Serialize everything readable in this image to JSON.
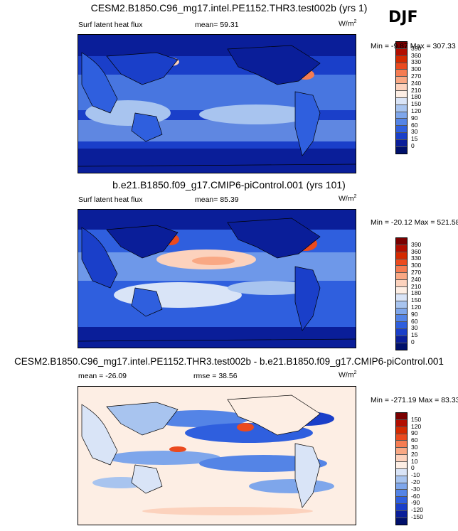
{
  "season": "DJF",
  "panels": [
    {
      "title": "CESM2.B1850.C96_mg17.intel.PE1152.THR3.test002b (yrs 1)",
      "variable": "Surf latent heat flux",
      "stat_label": "mean=",
      "stat_value": "59.31",
      "units_base": "W/m",
      "units_exp": "2",
      "range_text": "Min =  -9.87 Max = 307.33",
      "colorbar_levels": [
        "390",
        "360",
        "330",
        "300",
        "270",
        "240",
        "210",
        "180",
        "150",
        "120",
        "90",
        "60",
        "30",
        "15",
        "0"
      ]
    },
    {
      "title": "b.e21.B1850.f09_g17.CMIP6-piControl.001 (yrs 101)",
      "variable": "Surf latent heat flux",
      "stat_label": "mean=",
      "stat_value": "85.39",
      "units_base": "W/m",
      "units_exp": "2",
      "range_text": "Min = -20.12 Max = 521.58",
      "colorbar_levels": [
        "390",
        "360",
        "330",
        "300",
        "270",
        "240",
        "210",
        "180",
        "150",
        "120",
        "90",
        "60",
        "30",
        "15",
        "0"
      ]
    },
    {
      "title": "CESM2.B1850.C96_mg17.intel.PE1152.THR3.test002b - b.e21.B1850.f09_g17.CMIP6-piControl.001",
      "stat_label": "mean =",
      "stat_value": "-26.09",
      "stat2_label": "rmse =",
      "stat2_value": "38.56",
      "units_base": "W/m",
      "units_exp": "2",
      "range_text": "Min = -271.19 Max =  83.33",
      "colorbar_levels": [
        "150",
        "120",
        "90",
        "60",
        "30",
        "20",
        "10",
        "0",
        "-10",
        "-20",
        "-30",
        "-60",
        "-90",
        "-120",
        "-150"
      ]
    }
  ],
  "colors": {
    "abs_scale": [
      "#7a0000",
      "#b20e00",
      "#d42a00",
      "#eb4a1e",
      "#f57c52",
      "#f9a884",
      "#fcd2bd",
      "#fdeee4",
      "#d9e4f7",
      "#a8c4ef",
      "#7ea6eb",
      "#5484e6",
      "#2f5fde",
      "#1a3fc9",
      "#0a1e99",
      "#00106b"
    ],
    "diff_scale": [
      "#7a0000",
      "#b20e00",
      "#d42a00",
      "#eb4a1e",
      "#f57c52",
      "#f9a884",
      "#fcd2bd",
      "#fdeee4",
      "#d9e4f7",
      "#a8c4ef",
      "#7ea6eb",
      "#5484e6",
      "#2f5fde",
      "#1a3fc9",
      "#0a1e99",
      "#00106b"
    ]
  }
}
